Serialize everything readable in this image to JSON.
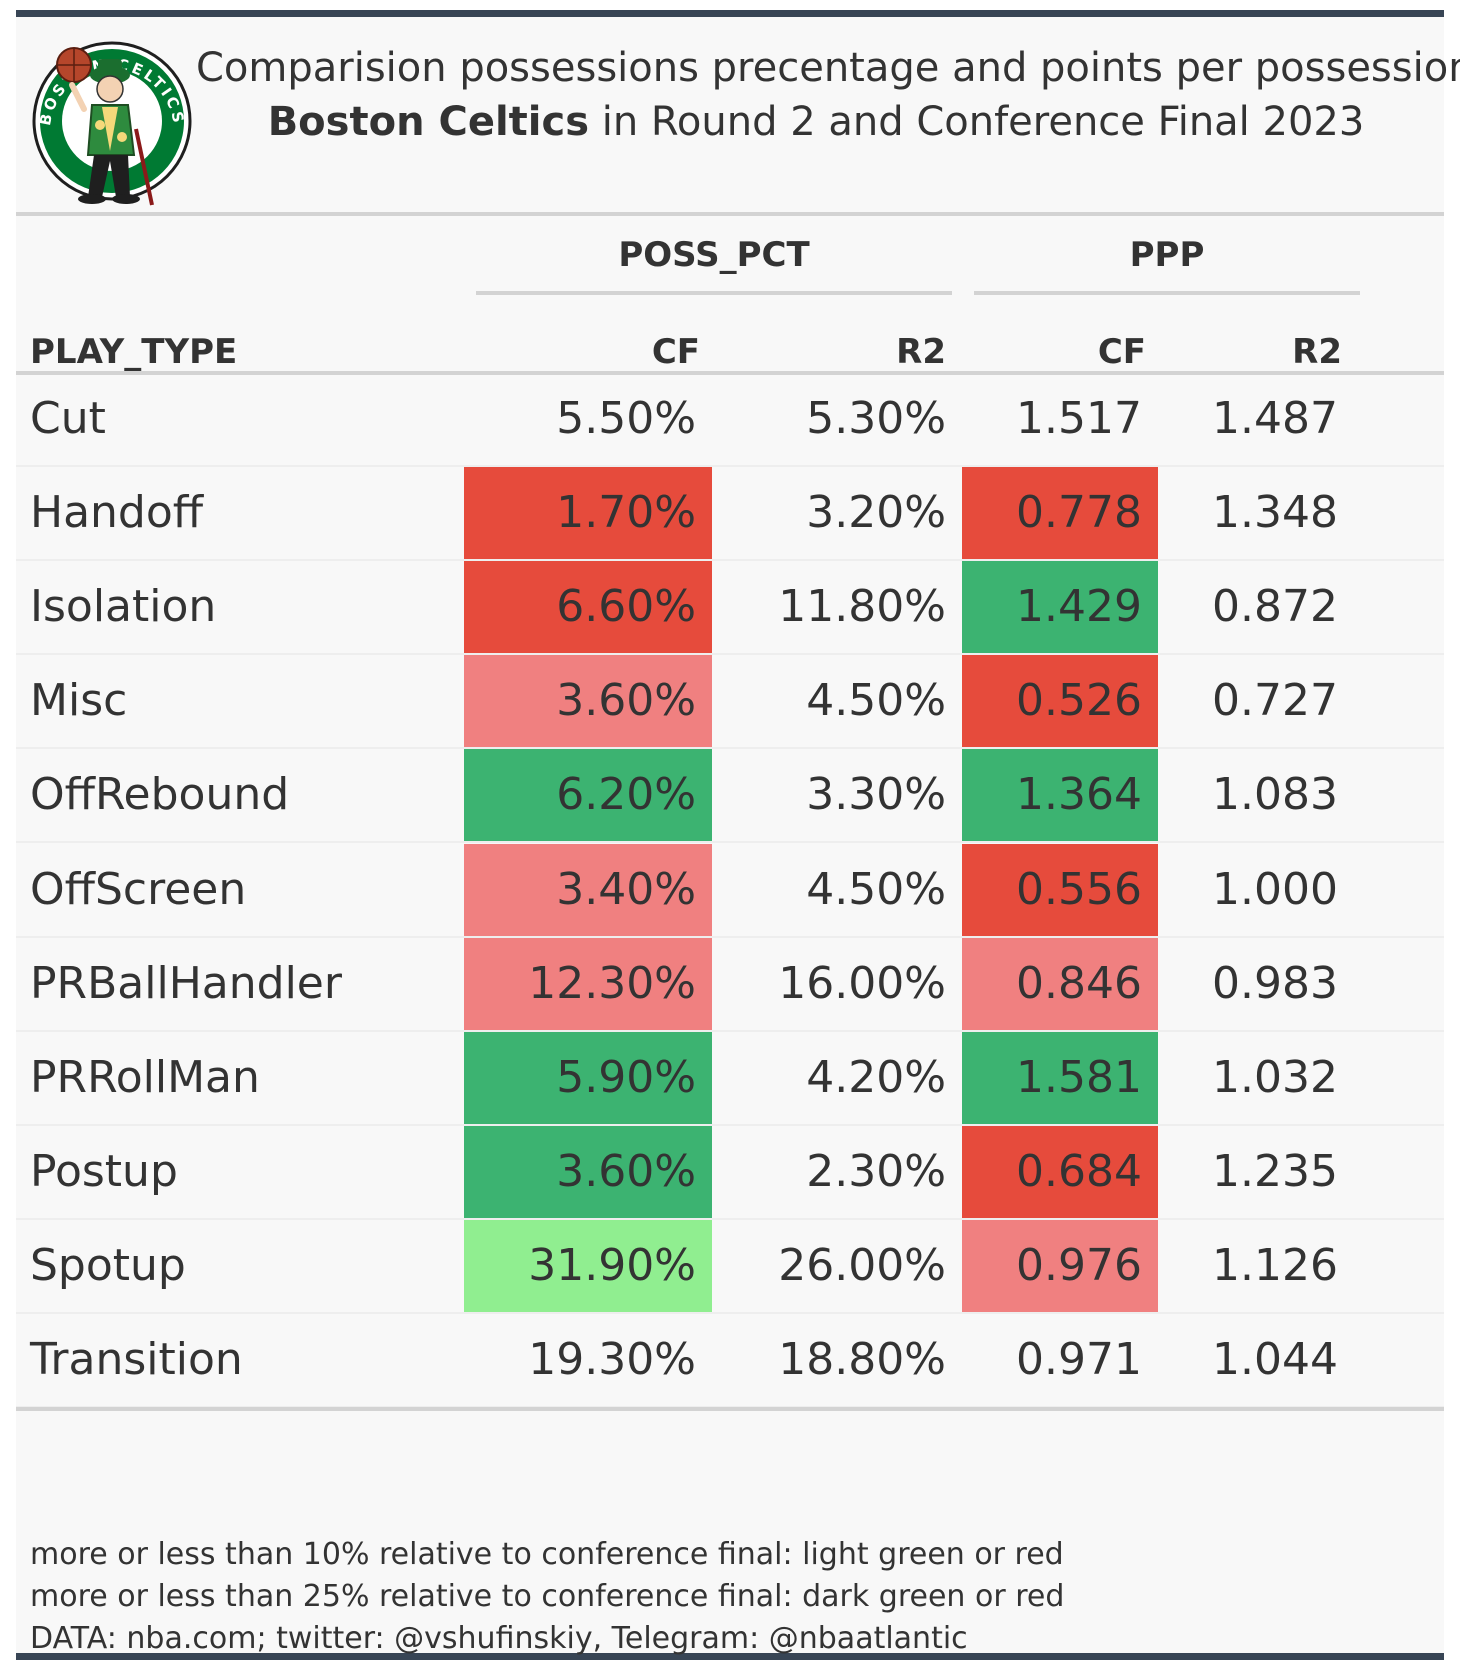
{
  "title": {
    "line1": "Comparision possessions precentage and points per possessions",
    "line2_bold": "Boston Celtics",
    "line2_rest": " in Round 2 and Conference Final 2023"
  },
  "logo": {
    "icon": "boston-celtics-logo",
    "text": "BOSTON CELTICS"
  },
  "colors": {
    "dark_red": "#e64b3c",
    "light_red": "#f08080",
    "dark_green": "#3cb371",
    "light_green": "#90ee90",
    "border": "#384555"
  },
  "chart_data": {
    "type": "table",
    "spanners": [
      "POSS_PCT",
      "PPP"
    ],
    "columns": [
      "PLAY_TYPE",
      "CF",
      "R2",
      "CF",
      "R2"
    ],
    "rows": [
      {
        "play_type": "Cut",
        "poss_cf": "5.50%",
        "poss_r2": "5.30%",
        "ppp_cf": "1.517",
        "ppp_r2": "1.487",
        "poss_cf_fill": "",
        "ppp_cf_fill": ""
      },
      {
        "play_type": "Handoff",
        "poss_cf": "1.70%",
        "poss_r2": "3.20%",
        "ppp_cf": "0.778",
        "ppp_r2": "1.348",
        "poss_cf_fill": "dark_red",
        "ppp_cf_fill": "dark_red"
      },
      {
        "play_type": "Isolation",
        "poss_cf": "6.60%",
        "poss_r2": "11.80%",
        "ppp_cf": "1.429",
        "ppp_r2": "0.872",
        "poss_cf_fill": "dark_red",
        "ppp_cf_fill": "dark_green"
      },
      {
        "play_type": "Misc",
        "poss_cf": "3.60%",
        "poss_r2": "4.50%",
        "ppp_cf": "0.526",
        "ppp_r2": "0.727",
        "poss_cf_fill": "light_red",
        "ppp_cf_fill": "dark_red"
      },
      {
        "play_type": "OffRebound",
        "poss_cf": "6.20%",
        "poss_r2": "3.30%",
        "ppp_cf": "1.364",
        "ppp_r2": "1.083",
        "poss_cf_fill": "dark_green",
        "ppp_cf_fill": "dark_green"
      },
      {
        "play_type": "OffScreen",
        "poss_cf": "3.40%",
        "poss_r2": "4.50%",
        "ppp_cf": "0.556",
        "ppp_r2": "1.000",
        "poss_cf_fill": "light_red",
        "ppp_cf_fill": "dark_red"
      },
      {
        "play_type": "PRBallHandler",
        "poss_cf": "12.30%",
        "poss_r2": "16.00%",
        "ppp_cf": "0.846",
        "ppp_r2": "0.983",
        "poss_cf_fill": "light_red",
        "ppp_cf_fill": "light_red"
      },
      {
        "play_type": "PRRollMan",
        "poss_cf": "5.90%",
        "poss_r2": "4.20%",
        "ppp_cf": "1.581",
        "ppp_r2": "1.032",
        "poss_cf_fill": "dark_green",
        "ppp_cf_fill": "dark_green"
      },
      {
        "play_type": "Postup",
        "poss_cf": "3.60%",
        "poss_r2": "2.30%",
        "ppp_cf": "0.684",
        "ppp_r2": "1.235",
        "poss_cf_fill": "dark_green",
        "ppp_cf_fill": "dark_red"
      },
      {
        "play_type": "Spotup",
        "poss_cf": "31.90%",
        "poss_r2": "26.00%",
        "ppp_cf": "0.976",
        "ppp_r2": "1.126",
        "poss_cf_fill": "light_green",
        "ppp_cf_fill": "light_red"
      },
      {
        "play_type": "Transition",
        "poss_cf": "19.30%",
        "poss_r2": "18.80%",
        "ppp_cf": "0.971",
        "ppp_r2": "1.044",
        "poss_cf_fill": "",
        "ppp_cf_fill": ""
      }
    ]
  },
  "footer": {
    "line1": "more or less than 10% relative to conference final: light green or red",
    "line2": "more or less than 25% relative to conference final: dark green or red",
    "line3": "DATA: nba.com; twitter: @vshufinskiy, Telegram: @nbaatlantic"
  }
}
